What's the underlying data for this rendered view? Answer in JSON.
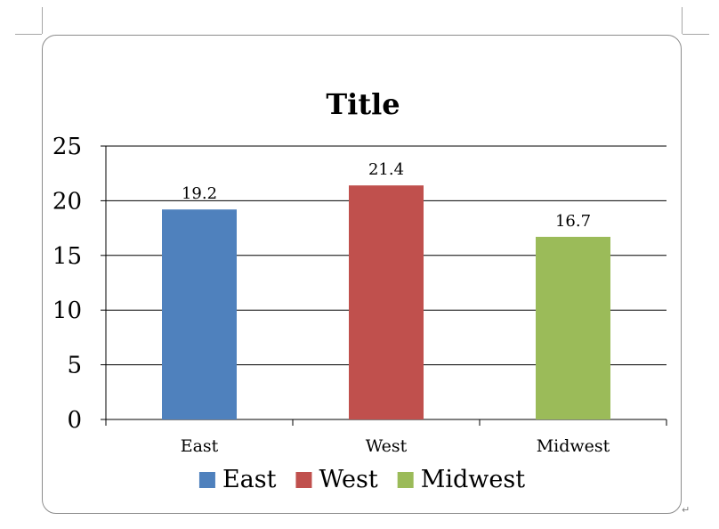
{
  "document": {
    "paragraph_mark": "↵"
  },
  "chart_data": {
    "type": "bar",
    "title": "Title",
    "categories": [
      "East",
      "West",
      "Midwest"
    ],
    "values": [
      19.2,
      21.4,
      16.7
    ],
    "data_labels": [
      "19.2",
      "21.4",
      "16.7"
    ],
    "colors": [
      "#4f81bd",
      "#c0504d",
      "#9bbb59"
    ],
    "xlabel": "",
    "ylabel": "",
    "ylim": [
      0,
      25
    ],
    "yticks": [
      0,
      5,
      10,
      15,
      20,
      25
    ],
    "grid": true,
    "legend": {
      "position": "bottom",
      "entries": [
        "East",
        "West",
        "Midwest"
      ]
    }
  }
}
